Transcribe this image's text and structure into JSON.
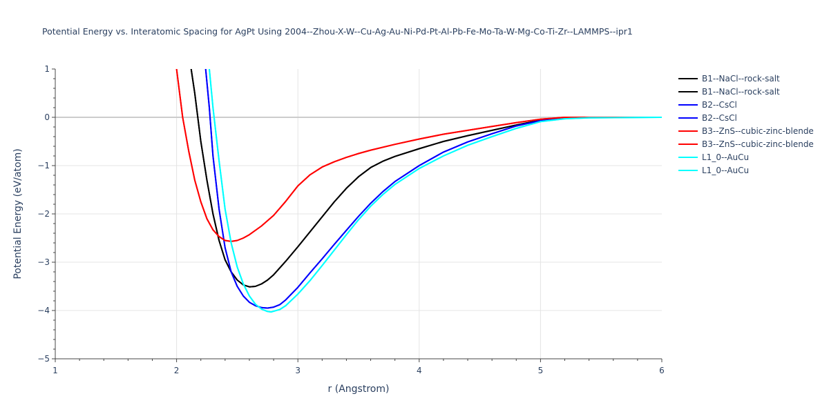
{
  "chart_data": {
    "type": "line",
    "title": "Potential Energy vs. Interatomic Spacing for AgPt Using 2004--Zhou-X-W--Cu-Ag-Au-Ni-Pd-Pt-Al-Pb-Fe-Mo-Ta-W-Mg-Co-Ti-Zr--LAMMPS--ipr1",
    "xlabel": "r (Angstrom)",
    "ylabel": "Potential Energy (eV/atom)",
    "xlim": [
      1,
      6
    ],
    "ylim": [
      -5,
      1
    ],
    "xticks": [
      1,
      2,
      3,
      4,
      5,
      6
    ],
    "yticks": [
      1,
      0,
      -1,
      -2,
      -3,
      -4,
      -5
    ],
    "xtick_labels": [
      "1",
      "2",
      "3",
      "4",
      "5",
      "6"
    ],
    "ytick_labels": [
      "1",
      "0",
      "−1",
      "−2",
      "−3",
      "−4",
      "−5"
    ],
    "grid": true,
    "legend_position": "right",
    "series": [
      {
        "name": "B1--NaCl--rock-salt",
        "color": "#000000",
        "points": [
          [
            2.12,
            1.0
          ],
          [
            2.15,
            0.5
          ],
          [
            2.2,
            -0.5
          ],
          [
            2.25,
            -1.3
          ],
          [
            2.3,
            -2.0
          ],
          [
            2.35,
            -2.55
          ],
          [
            2.4,
            -2.95
          ],
          [
            2.45,
            -3.2
          ],
          [
            2.5,
            -3.37
          ],
          [
            2.55,
            -3.47
          ],
          [
            2.6,
            -3.51
          ],
          [
            2.65,
            -3.5
          ],
          [
            2.7,
            -3.45
          ],
          [
            2.75,
            -3.37
          ],
          [
            2.8,
            -3.26
          ],
          [
            2.9,
            -2.98
          ],
          [
            3.0,
            -2.68
          ],
          [
            3.1,
            -2.37
          ],
          [
            3.2,
            -2.06
          ],
          [
            3.3,
            -1.75
          ],
          [
            3.4,
            -1.47
          ],
          [
            3.5,
            -1.23
          ],
          [
            3.6,
            -1.04
          ],
          [
            3.7,
            -0.91
          ],
          [
            3.8,
            -0.81
          ],
          [
            4.0,
            -0.65
          ],
          [
            4.2,
            -0.5
          ],
          [
            4.4,
            -0.38
          ],
          [
            4.6,
            -0.27
          ],
          [
            4.8,
            -0.16
          ],
          [
            5.0,
            -0.06
          ],
          [
            5.2,
            -0.01
          ],
          [
            5.4,
            0.0
          ],
          [
            6.0,
            0.0
          ]
        ]
      },
      {
        "name": "B1--NaCl--rock-salt",
        "color": "#000000",
        "points": [
          [
            2.12,
            1.0
          ],
          [
            2.15,
            0.5
          ],
          [
            2.2,
            -0.5
          ],
          [
            2.25,
            -1.3
          ],
          [
            2.3,
            -2.0
          ],
          [
            2.35,
            -2.55
          ],
          [
            2.4,
            -2.95
          ],
          [
            2.45,
            -3.2
          ],
          [
            2.5,
            -3.37
          ],
          [
            2.55,
            -3.47
          ],
          [
            2.6,
            -3.51
          ],
          [
            2.65,
            -3.5
          ],
          [
            2.7,
            -3.45
          ],
          [
            2.75,
            -3.37
          ],
          [
            2.8,
            -3.26
          ],
          [
            2.9,
            -2.98
          ],
          [
            3.0,
            -2.68
          ],
          [
            3.1,
            -2.37
          ],
          [
            3.2,
            -2.06
          ],
          [
            3.3,
            -1.75
          ],
          [
            3.4,
            -1.47
          ],
          [
            3.5,
            -1.23
          ],
          [
            3.6,
            -1.04
          ],
          [
            3.7,
            -0.91
          ],
          [
            3.8,
            -0.81
          ],
          [
            4.0,
            -0.65
          ],
          [
            4.2,
            -0.5
          ],
          [
            4.4,
            -0.38
          ],
          [
            4.6,
            -0.27
          ],
          [
            4.8,
            -0.16
          ],
          [
            5.0,
            -0.06
          ],
          [
            5.2,
            -0.01
          ],
          [
            5.4,
            0.0
          ],
          [
            6.0,
            0.0
          ]
        ]
      },
      {
        "name": "B2--CsCl",
        "color": "#0000ff",
        "points": [
          [
            2.24,
            1.0
          ],
          [
            2.27,
            0.2
          ],
          [
            2.3,
            -0.8
          ],
          [
            2.35,
            -1.9
          ],
          [
            2.4,
            -2.7
          ],
          [
            2.45,
            -3.2
          ],
          [
            2.5,
            -3.5
          ],
          [
            2.55,
            -3.7
          ],
          [
            2.6,
            -3.83
          ],
          [
            2.65,
            -3.9
          ],
          [
            2.7,
            -3.94
          ],
          [
            2.75,
            -3.95
          ],
          [
            2.8,
            -3.93
          ],
          [
            2.85,
            -3.88
          ],
          [
            2.9,
            -3.78
          ],
          [
            3.0,
            -3.52
          ],
          [
            3.1,
            -3.22
          ],
          [
            3.2,
            -2.93
          ],
          [
            3.3,
            -2.63
          ],
          [
            3.4,
            -2.34
          ],
          [
            3.5,
            -2.05
          ],
          [
            3.6,
            -1.78
          ],
          [
            3.7,
            -1.54
          ],
          [
            3.8,
            -1.33
          ],
          [
            4.0,
            -1.0
          ],
          [
            4.2,
            -0.72
          ],
          [
            4.4,
            -0.51
          ],
          [
            4.6,
            -0.34
          ],
          [
            4.8,
            -0.18
          ],
          [
            5.0,
            -0.07
          ],
          [
            5.2,
            -0.01
          ],
          [
            5.4,
            0.0
          ],
          [
            6.0,
            0.0
          ]
        ]
      },
      {
        "name": "B2--CsCl",
        "color": "#0000ff",
        "points": [
          [
            2.24,
            1.0
          ],
          [
            2.27,
            0.2
          ],
          [
            2.3,
            -0.8
          ],
          [
            2.35,
            -1.9
          ],
          [
            2.4,
            -2.7
          ],
          [
            2.45,
            -3.2
          ],
          [
            2.5,
            -3.5
          ],
          [
            2.55,
            -3.7
          ],
          [
            2.6,
            -3.83
          ],
          [
            2.65,
            -3.9
          ],
          [
            2.7,
            -3.94
          ],
          [
            2.75,
            -3.95
          ],
          [
            2.8,
            -3.93
          ],
          [
            2.85,
            -3.88
          ],
          [
            2.9,
            -3.78
          ],
          [
            3.0,
            -3.52
          ],
          [
            3.1,
            -3.22
          ],
          [
            3.2,
            -2.93
          ],
          [
            3.3,
            -2.63
          ],
          [
            3.4,
            -2.34
          ],
          [
            3.5,
            -2.05
          ],
          [
            3.6,
            -1.78
          ],
          [
            3.7,
            -1.54
          ],
          [
            3.8,
            -1.33
          ],
          [
            4.0,
            -1.0
          ],
          [
            4.2,
            -0.72
          ],
          [
            4.4,
            -0.51
          ],
          [
            4.6,
            -0.34
          ],
          [
            4.8,
            -0.18
          ],
          [
            5.0,
            -0.07
          ],
          [
            5.2,
            -0.01
          ],
          [
            5.4,
            0.0
          ],
          [
            6.0,
            0.0
          ]
        ]
      },
      {
        "name": "B3--ZnS--cubic-zinc-blende",
        "color": "#ff0000",
        "points": [
          [
            2.0,
            1.0
          ],
          [
            2.05,
            0.0
          ],
          [
            2.1,
            -0.7
          ],
          [
            2.15,
            -1.3
          ],
          [
            2.2,
            -1.75
          ],
          [
            2.25,
            -2.1
          ],
          [
            2.3,
            -2.33
          ],
          [
            2.35,
            -2.47
          ],
          [
            2.4,
            -2.55
          ],
          [
            2.45,
            -2.57
          ],
          [
            2.5,
            -2.55
          ],
          [
            2.55,
            -2.5
          ],
          [
            2.6,
            -2.43
          ],
          [
            2.7,
            -2.25
          ],
          [
            2.8,
            -2.03
          ],
          [
            2.9,
            -1.74
          ],
          [
            3.0,
            -1.42
          ],
          [
            3.1,
            -1.19
          ],
          [
            3.2,
            -1.03
          ],
          [
            3.3,
            -0.92
          ],
          [
            3.4,
            -0.83
          ],
          [
            3.5,
            -0.75
          ],
          [
            3.6,
            -0.68
          ],
          [
            3.8,
            -0.56
          ],
          [
            4.0,
            -0.45
          ],
          [
            4.2,
            -0.35
          ],
          [
            4.4,
            -0.27
          ],
          [
            4.6,
            -0.19
          ],
          [
            4.8,
            -0.11
          ],
          [
            5.0,
            -0.04
          ],
          [
            5.2,
            0.0
          ],
          [
            6.0,
            0.0
          ]
        ]
      },
      {
        "name": "B3--ZnS--cubic-zinc-blende",
        "color": "#ff0000",
        "points": [
          [
            2.0,
            1.0
          ],
          [
            2.05,
            0.0
          ],
          [
            2.1,
            -0.7
          ],
          [
            2.15,
            -1.3
          ],
          [
            2.2,
            -1.75
          ],
          [
            2.25,
            -2.1
          ],
          [
            2.3,
            -2.33
          ],
          [
            2.35,
            -2.47
          ],
          [
            2.4,
            -2.55
          ],
          [
            2.45,
            -2.57
          ],
          [
            2.5,
            -2.55
          ],
          [
            2.55,
            -2.5
          ],
          [
            2.6,
            -2.43
          ],
          [
            2.7,
            -2.25
          ],
          [
            2.8,
            -2.03
          ],
          [
            2.9,
            -1.74
          ],
          [
            3.0,
            -1.42
          ],
          [
            3.1,
            -1.19
          ],
          [
            3.2,
            -1.03
          ],
          [
            3.3,
            -0.92
          ],
          [
            3.4,
            -0.83
          ],
          [
            3.5,
            -0.75
          ],
          [
            3.6,
            -0.68
          ],
          [
            3.8,
            -0.56
          ],
          [
            4.0,
            -0.45
          ],
          [
            4.2,
            -0.35
          ],
          [
            4.4,
            -0.27
          ],
          [
            4.6,
            -0.19
          ],
          [
            4.8,
            -0.11
          ],
          [
            5.0,
            -0.04
          ],
          [
            5.2,
            0.0
          ],
          [
            6.0,
            0.0
          ]
        ]
      },
      {
        "name": "L1_0--AuCu",
        "color": "#00ffff",
        "points": [
          [
            2.27,
            1.0
          ],
          [
            2.3,
            0.2
          ],
          [
            2.35,
            -0.9
          ],
          [
            2.4,
            -1.9
          ],
          [
            2.45,
            -2.6
          ],
          [
            2.5,
            -3.1
          ],
          [
            2.55,
            -3.45
          ],
          [
            2.6,
            -3.7
          ],
          [
            2.65,
            -3.87
          ],
          [
            2.7,
            -3.97
          ],
          [
            2.75,
            -4.02
          ],
          [
            2.78,
            -4.03
          ],
          [
            2.85,
            -3.98
          ],
          [
            2.9,
            -3.9
          ],
          [
            3.0,
            -3.66
          ],
          [
            3.1,
            -3.38
          ],
          [
            3.2,
            -3.07
          ],
          [
            3.3,
            -2.75
          ],
          [
            3.4,
            -2.43
          ],
          [
            3.5,
            -2.12
          ],
          [
            3.6,
            -1.84
          ],
          [
            3.7,
            -1.6
          ],
          [
            3.8,
            -1.39
          ],
          [
            4.0,
            -1.06
          ],
          [
            4.2,
            -0.8
          ],
          [
            4.4,
            -0.58
          ],
          [
            4.6,
            -0.4
          ],
          [
            4.8,
            -0.23
          ],
          [
            5.0,
            -0.09
          ],
          [
            5.2,
            -0.03
          ],
          [
            5.4,
            -0.01
          ],
          [
            6.0,
            0.0
          ]
        ]
      },
      {
        "name": "L1_0--AuCu",
        "color": "#00ffff",
        "points": [
          [
            2.27,
            1.0
          ],
          [
            2.3,
            0.2
          ],
          [
            2.35,
            -0.9
          ],
          [
            2.4,
            -1.9
          ],
          [
            2.45,
            -2.6
          ],
          [
            2.5,
            -3.1
          ],
          [
            2.55,
            -3.45
          ],
          [
            2.6,
            -3.7
          ],
          [
            2.65,
            -3.87
          ],
          [
            2.7,
            -3.97
          ],
          [
            2.75,
            -4.02
          ],
          [
            2.78,
            -4.03
          ],
          [
            2.85,
            -3.98
          ],
          [
            2.9,
            -3.9
          ],
          [
            3.0,
            -3.66
          ],
          [
            3.1,
            -3.38
          ],
          [
            3.2,
            -3.07
          ],
          [
            3.3,
            -2.75
          ],
          [
            3.4,
            -2.43
          ],
          [
            3.5,
            -2.12
          ],
          [
            3.6,
            -1.84
          ],
          [
            3.7,
            -1.6
          ],
          [
            3.8,
            -1.39
          ],
          [
            4.0,
            -1.06
          ],
          [
            4.2,
            -0.8
          ],
          [
            4.4,
            -0.58
          ],
          [
            4.6,
            -0.4
          ],
          [
            4.8,
            -0.23
          ],
          [
            5.0,
            -0.09
          ],
          [
            5.2,
            -0.03
          ],
          [
            5.4,
            -0.01
          ],
          [
            6.0,
            0.0
          ]
        ]
      }
    ]
  }
}
